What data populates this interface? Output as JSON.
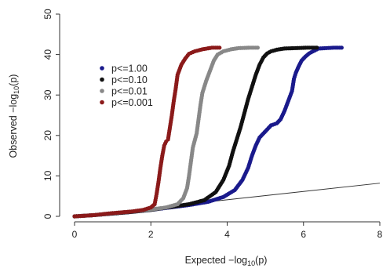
{
  "chart_data": {
    "type": "scatter",
    "title": "",
    "xlabel": {
      "main": "Expected  −log",
      "sub": "10",
      "tail": "(p)"
    },
    "ylabel": {
      "main": "Observed  −log",
      "sub": "10",
      "tail": "(p)"
    },
    "xlim": [
      0,
      8
    ],
    "ylim": [
      0,
      50
    ],
    "xticks": [
      0,
      2,
      4,
      6,
      8
    ],
    "yticks": [
      0,
      10,
      20,
      30,
      40,
      50
    ],
    "xtick_labels": [
      "0",
      "2",
      "4",
      "6",
      "8"
    ],
    "ytick_labels": [
      "0",
      "10",
      "20",
      "30",
      "40",
      "50"
    ],
    "grid": false,
    "legend_position": "top-left",
    "reference_line": {
      "from": [
        0,
        0
      ],
      "to": [
        8,
        8.2
      ],
      "color": "#333333"
    },
    "series": [
      {
        "name": "p<=1.00",
        "color": "#1a1a8c",
        "points": [
          [
            0.0,
            0.0
          ],
          [
            0.5,
            0.3
          ],
          [
            1.0,
            0.7
          ],
          [
            1.5,
            1.1
          ],
          [
            2.0,
            1.6
          ],
          [
            2.5,
            2.2
          ],
          [
            3.0,
            2.8
          ],
          [
            3.5,
            3.6
          ],
          [
            3.9,
            4.8
          ],
          [
            4.2,
            6.5
          ],
          [
            4.4,
            9
          ],
          [
            4.55,
            12
          ],
          [
            4.65,
            15
          ],
          [
            4.75,
            17.5
          ],
          [
            4.85,
            19.5
          ],
          [
            4.95,
            20.5
          ],
          [
            5.05,
            21.5
          ],
          [
            5.15,
            22.5
          ],
          [
            5.3,
            23
          ],
          [
            5.4,
            24
          ],
          [
            5.5,
            26
          ],
          [
            5.6,
            28.5
          ],
          [
            5.7,
            31
          ],
          [
            5.75,
            34
          ],
          [
            5.8,
            35.5
          ],
          [
            5.87,
            37
          ],
          [
            5.95,
            38.5
          ],
          [
            6.05,
            39.5
          ],
          [
            6.15,
            40.3
          ],
          [
            6.25,
            40.8
          ],
          [
            6.4,
            41.5
          ],
          [
            6.6,
            41.6
          ],
          [
            6.8,
            41.7
          ],
          [
            7.0,
            41.7
          ]
        ]
      },
      {
        "name": "p<=0.10",
        "color": "#111111",
        "points": [
          [
            0.0,
            0.0
          ],
          [
            0.5,
            0.3
          ],
          [
            1.0,
            0.7
          ],
          [
            1.5,
            1.1
          ],
          [
            2.0,
            1.6
          ],
          [
            2.5,
            2.3
          ],
          [
            3.0,
            3.0
          ],
          [
            3.4,
            4.0
          ],
          [
            3.7,
            6.0
          ],
          [
            3.9,
            9.0
          ],
          [
            4.05,
            12.5
          ],
          [
            4.15,
            16
          ],
          [
            4.25,
            19
          ],
          [
            4.35,
            22
          ],
          [
            4.45,
            25.5
          ],
          [
            4.55,
            29
          ],
          [
            4.65,
            32
          ],
          [
            4.75,
            35
          ],
          [
            4.85,
            37.5
          ],
          [
            4.95,
            39.3
          ],
          [
            5.05,
            40.3
          ],
          [
            5.15,
            40.8
          ],
          [
            5.3,
            41.2
          ],
          [
            5.5,
            41.5
          ],
          [
            5.8,
            41.6
          ],
          [
            6.1,
            41.7
          ],
          [
            6.35,
            41.7
          ]
        ]
      },
      {
        "name": "p<=0.01",
        "color": "#888888",
        "points": [
          [
            0.0,
            0.0
          ],
          [
            0.5,
            0.3
          ],
          [
            1.0,
            0.8
          ],
          [
            1.5,
            1.2
          ],
          [
            2.0,
            1.7
          ],
          [
            2.4,
            2.2
          ],
          [
            2.7,
            3.0
          ],
          [
            2.85,
            4.5
          ],
          [
            2.95,
            7.0
          ],
          [
            3.0,
            10
          ],
          [
            3.05,
            13.5
          ],
          [
            3.1,
            17
          ],
          [
            3.2,
            20.5
          ],
          [
            3.25,
            24
          ],
          [
            3.3,
            27.5
          ],
          [
            3.35,
            30.5
          ],
          [
            3.45,
            33.5
          ],
          [
            3.55,
            36
          ],
          [
            3.65,
            38.5
          ],
          [
            3.75,
            40
          ],
          [
            3.9,
            40.8
          ],
          [
            4.1,
            41.3
          ],
          [
            4.3,
            41.6
          ],
          [
            4.6,
            41.7
          ],
          [
            4.8,
            41.7
          ]
        ]
      },
      {
        "name": "p<=0.001",
        "color": "#8b1a1a",
        "points": [
          [
            0.0,
            0.0
          ],
          [
            0.5,
            0.3
          ],
          [
            1.0,
            0.8
          ],
          [
            1.5,
            1.2
          ],
          [
            1.8,
            1.6
          ],
          [
            2.0,
            2.2
          ],
          [
            2.1,
            3.0
          ],
          [
            2.15,
            5.5
          ],
          [
            2.2,
            8.5
          ],
          [
            2.25,
            12
          ],
          [
            2.3,
            15
          ],
          [
            2.35,
            17.5
          ],
          [
            2.4,
            18.5
          ],
          [
            2.45,
            19
          ],
          [
            2.5,
            22
          ],
          [
            2.55,
            25
          ],
          [
            2.6,
            28.5
          ],
          [
            2.65,
            31.5
          ],
          [
            2.7,
            35
          ],
          [
            2.8,
            37.5
          ],
          [
            2.9,
            39
          ],
          [
            3.0,
            40.2
          ],
          [
            3.15,
            40.8
          ],
          [
            3.35,
            41.3
          ],
          [
            3.6,
            41.7
          ],
          [
            3.8,
            41.7
          ]
        ]
      }
    ]
  }
}
